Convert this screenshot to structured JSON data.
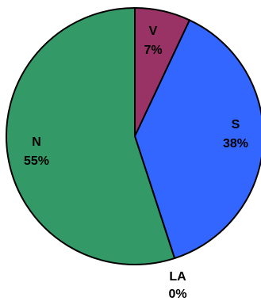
{
  "chart_data": {
    "type": "pie",
    "slices": [
      {
        "label": "V",
        "percent_label": "7%",
        "value": 7,
        "color": "#993366"
      },
      {
        "label": "S",
        "percent_label": "38%",
        "value": 38,
        "color": "#3366ff"
      },
      {
        "label": "LA",
        "percent_label": "0%",
        "value": 0,
        "color": "#ffffff"
      },
      {
        "label": "N",
        "percent_label": "55%",
        "value": 55,
        "color": "#339966"
      }
    ],
    "title": "",
    "legend": "none",
    "start_angle": "12 o'clock",
    "direction": "clockwise"
  }
}
